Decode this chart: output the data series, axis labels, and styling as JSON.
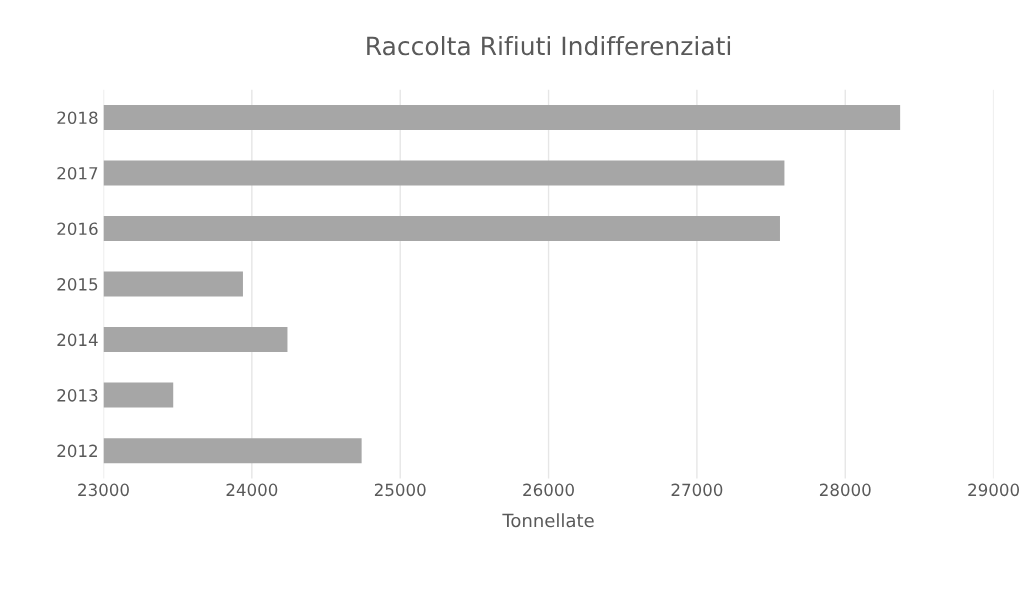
{
  "chart_data": {
    "type": "bar",
    "orientation": "horizontal",
    "title": "Raccolta Rifiuti Indifferenziati",
    "xlabel": "Tonnellate",
    "categories": [
      "2018",
      "2017",
      "2016",
      "2015",
      "2014",
      "2013",
      "2012"
    ],
    "values": [
      28370,
      27590,
      27560,
      23940,
      24240,
      23470,
      24740
    ],
    "color": "#a6a6a6",
    "xlim": [
      23000,
      29000
    ],
    "xticks": [
      23000,
      24000,
      25000,
      26000,
      27000,
      28000,
      29000
    ],
    "grid": "x"
  }
}
